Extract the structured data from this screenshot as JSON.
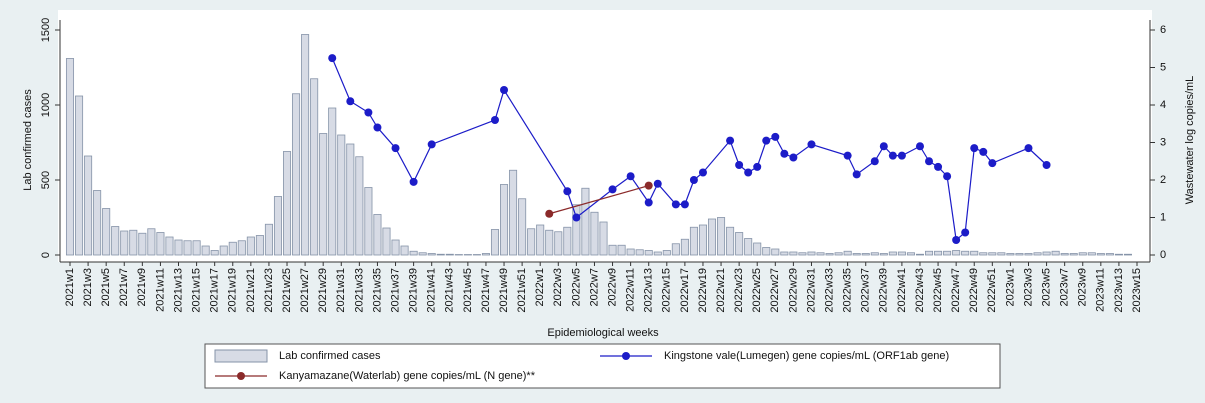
{
  "chart_data": {
    "type": "combo",
    "xlabel": "Epidemiological weeks",
    "ylabel": "Lab confirmed cases",
    "y2label": "Wastewater log copies/mL",
    "categories": [
      "2021w1",
      null,
      "2021w3",
      null,
      "2021w5",
      null,
      "2021w7",
      null,
      "2021w9",
      null,
      "2021w11",
      null,
      "2021w13",
      null,
      "2021w15",
      null,
      "2021w17",
      null,
      "2021w19",
      null,
      "2021w21",
      null,
      "2021w23",
      null,
      "2021w25",
      null,
      "2021w27",
      null,
      "2021w29",
      null,
      "2021w31",
      null,
      "2021w33",
      null,
      "2021w35",
      null,
      "2021w37",
      null,
      "2021w39",
      null,
      "2021w41",
      null,
      "2021w43",
      null,
      "2021w45",
      null,
      "2021w47",
      null,
      "2021w49",
      null,
      "2021w51",
      null,
      "2022w1",
      null,
      "2022w3",
      null,
      "2022w5",
      null,
      "2022w7",
      null,
      "2022w9",
      null,
      "2022w11",
      null,
      "2022w13",
      null,
      "2022w15",
      null,
      "2022w17",
      null,
      "2022w19",
      null,
      "2022w21",
      null,
      "2022w23",
      null,
      "2022w25",
      null,
      "2022w27",
      null,
      "2022w29",
      null,
      "2022w31",
      null,
      "2022w33",
      null,
      "2022w35",
      null,
      "2022w37",
      null,
      "2022w39",
      null,
      "2022w41",
      null,
      "2022w43",
      null,
      "2022w45",
      null,
      "2022w47",
      null,
      "2022w49",
      null,
      "2022w51",
      null,
      "2023w1",
      null,
      "2023w3",
      null,
      "2023w5",
      null,
      "2023w7",
      null,
      "2023w9",
      null,
      "2023w11",
      null,
      "2023w13",
      null,
      "2023w15"
    ],
    "series": [
      {
        "name": "Lab confirmed cases",
        "type": "bar",
        "color": "#d7dbe5",
        "values": [
          1310,
          1060,
          660,
          430,
          310,
          190,
          160,
          165,
          145,
          175,
          150,
          120,
          100,
          95,
          95,
          60,
          30,
          60,
          85,
          95,
          120,
          130,
          205,
          390,
          690,
          1075,
          1470,
          1175,
          810,
          980,
          800,
          740,
          655,
          450,
          270,
          180,
          100,
          60,
          25,
          15,
          10,
          5,
          5,
          3,
          3,
          3,
          10,
          170,
          470,
          565,
          375,
          175,
          200,
          165,
          155,
          185,
          335,
          445,
          285,
          220,
          65,
          65,
          40,
          35,
          30,
          20,
          30,
          75,
          105,
          185,
          200,
          240,
          250,
          185,
          150,
          110,
          80,
          50,
          40,
          20,
          20,
          15,
          20,
          15,
          10,
          15,
          25,
          10,
          10,
          15,
          10,
          20,
          20,
          15,
          5,
          25,
          25,
          25,
          30,
          25,
          25,
          15,
          15,
          15,
          10,
          10,
          10,
          15,
          20,
          25,
          10,
          10,
          15,
          15,
          10,
          10,
          5,
          5,
          null
        ]
      },
      {
        "name": "Kingstone vale(Lumegen) gene copies/mL (ORF1ab gene)",
        "type": "line",
        "axis": "y2",
        "color": "#1c1cc8",
        "values": [
          null,
          null,
          null,
          null,
          null,
          null,
          null,
          null,
          null,
          null,
          null,
          null,
          null,
          null,
          null,
          null,
          null,
          null,
          null,
          null,
          null,
          null,
          null,
          null,
          null,
          null,
          null,
          null,
          null,
          5.25,
          null,
          4.1,
          null,
          3.8,
          3.4,
          null,
          2.85,
          null,
          1.95,
          null,
          2.95,
          null,
          null,
          null,
          null,
          null,
          null,
          3.6,
          4.4,
          null,
          null,
          null,
          null,
          null,
          null,
          1.7,
          1.0,
          null,
          null,
          null,
          1.75,
          null,
          2.1,
          null,
          1.4,
          1.9,
          null,
          1.35,
          1.35,
          2.0,
          2.2,
          null,
          null,
          3.05,
          2.4,
          2.2,
          2.35,
          3.05,
          3.15,
          2.7,
          2.6,
          null,
          2.95,
          null,
          null,
          null,
          2.65,
          2.15,
          null,
          2.5,
          2.9,
          2.65,
          2.65,
          null,
          2.9,
          2.5,
          2.35,
          2.1,
          0.4,
          0.6,
          2.85,
          2.75,
          2.45,
          null,
          null,
          null,
          2.85,
          null,
          2.4,
          null,
          null,
          null,
          null,
          null,
          null,
          null,
          null,
          null,
          null
        ]
      },
      {
        "name": "Kanyamazane(Waterlab) gene copies/mL (N gene)**",
        "type": "line",
        "axis": "y2",
        "color": "#8b2a2a",
        "values": [
          null,
          null,
          null,
          null,
          null,
          null,
          null,
          null,
          null,
          null,
          null,
          null,
          null,
          null,
          null,
          null,
          null,
          null,
          null,
          null,
          null,
          null,
          null,
          null,
          null,
          null,
          null,
          null,
          null,
          null,
          null,
          null,
          null,
          null,
          null,
          null,
          null,
          null,
          null,
          null,
          null,
          null,
          null,
          null,
          null,
          null,
          null,
          null,
          null,
          null,
          null,
          null,
          null,
          1.1,
          null,
          null,
          null,
          null,
          null,
          null,
          null,
          null,
          null,
          null,
          1.85,
          null,
          null,
          null,
          null,
          null,
          null,
          null,
          null,
          null,
          null,
          null,
          null,
          null,
          null,
          null,
          null,
          null,
          null,
          null,
          null,
          null,
          null,
          null,
          null,
          null,
          null,
          null,
          null,
          null,
          null,
          null,
          null,
          null,
          null,
          null,
          null,
          null,
          null,
          null,
          null,
          null,
          null,
          null,
          null,
          null,
          null,
          null,
          null,
          null,
          null,
          null,
          null,
          null,
          null
        ]
      }
    ],
    "ylim": [
      0,
      1500
    ],
    "yticks": [
      0,
      500,
      1000,
      1500
    ],
    "y2lim": [
      0,
      6
    ],
    "y2ticks": [
      0,
      1,
      2,
      3,
      4,
      5,
      6
    ],
    "grid": false,
    "legend": "bottom"
  }
}
